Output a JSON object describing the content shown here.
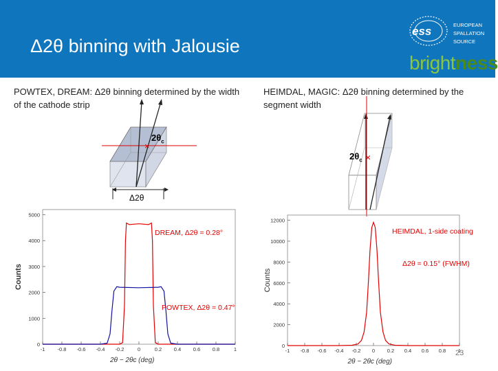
{
  "header": {
    "title": "Δ2θ binning with Jalousie",
    "logo": {
      "mark": "ess",
      "line1": "EUROPEAN",
      "line2": "SPALLATION",
      "line3": "SOURCE",
      "brand_prefix": "bright",
      "brand_suffix": "ness"
    }
  },
  "left": {
    "caption": "POWTEX, DREAM: Δ2θ binning determined by the width of the cathode strip",
    "theta_label": "2θ",
    "theta_sub": "c",
    "delta_label": "Δ2θ"
  },
  "right": {
    "caption": "HEIMDAL, MAGIC: Δ2θ binning determined by the segment width",
    "theta_label": "2θ",
    "theta_sub": "c"
  },
  "colors": {
    "header": "#0F75BC",
    "red": "#E00000",
    "blue": "#1010A0",
    "brand_green": "#8CC63F"
  },
  "chart_data": [
    {
      "type": "line",
      "title": "",
      "xlabel": "2θ − 2θc (deg)",
      "ylabel": "Counts",
      "xlim": [
        -1,
        1
      ],
      "ylim": [
        0,
        5200
      ],
      "xticks": [
        "-1",
        "-0.8",
        "-0.6",
        "-0.4",
        "-0.2",
        "0",
        "0.2",
        "0.4",
        "0.6",
        "0.8",
        "1"
      ],
      "yticks": [
        "0",
        "1000",
        "2000",
        "3000",
        "4000",
        "5000"
      ],
      "series": [
        {
          "name": "DREAM, Δ2θ = 0.28°",
          "color": "#E00000",
          "x": [
            -1.0,
            -0.4,
            -0.2,
            -0.17,
            -0.15,
            -0.14,
            -0.13,
            -0.1,
            0,
            0.1,
            0.13,
            0.14,
            0.15,
            0.17,
            0.2,
            0.4,
            1.0
          ],
          "y": [
            0,
            0,
            0,
            60,
            1500,
            4000,
            4680,
            4620,
            4650,
            4620,
            4680,
            4000,
            1500,
            60,
            0,
            0,
            0
          ]
        },
        {
          "name": "POWTEX, Δ2θ = 0.47°",
          "color": "#1010A0",
          "x": [
            -1.0,
            -0.4,
            -0.33,
            -0.3,
            -0.28,
            -0.26,
            -0.23,
            -0.2,
            0,
            0.2,
            0.23,
            0.26,
            0.28,
            0.3,
            0.33,
            0.4,
            1.0
          ],
          "y": [
            0,
            0,
            40,
            400,
            1300,
            2050,
            2220,
            2200,
            2180,
            2200,
            2220,
            2050,
            1300,
            400,
            40,
            0,
            0
          ]
        }
      ],
      "annotations": [
        "DREAM, Δ2θ = 0.28°",
        "POWTEX, Δ2θ = 0.47°"
      ]
    },
    {
      "type": "line",
      "title": "",
      "xlabel": "2θ − 2θc (deg)",
      "ylabel": "Counts",
      "xlim": [
        -1,
        1
      ],
      "ylim": [
        0,
        12500
      ],
      "xticks": [
        "-1",
        "-0.8",
        "-0.6",
        "-0.4",
        "-0.2",
        "0",
        "0.2",
        "0.4",
        "0.6",
        "0.8",
        "1"
      ],
      "yticks": [
        "0",
        "2000",
        "4000",
        "6000",
        "8000",
        "10000",
        "12000"
      ],
      "series": [
        {
          "name": "HEIMDAL, 1-side coating",
          "color": "#E00000",
          "x": [
            -1.0,
            -0.4,
            -0.25,
            -0.18,
            -0.14,
            -0.11,
            -0.08,
            -0.06,
            -0.04,
            -0.02,
            0,
            0.02,
            0.04,
            0.06,
            0.08,
            0.11,
            0.14,
            0.18,
            0.25,
            0.4,
            1.0
          ],
          "y": [
            0,
            0,
            30,
            150,
            500,
            1300,
            3200,
            6000,
            9200,
            11300,
            11800,
            11300,
            9200,
            6000,
            3200,
            1300,
            500,
            150,
            30,
            0,
            0
          ]
        }
      ],
      "annotations": [
        "HEIMDAL, 1-side coating",
        "Δ2θ = 0.15° (FWHM)"
      ]
    }
  ],
  "page_number": "23"
}
